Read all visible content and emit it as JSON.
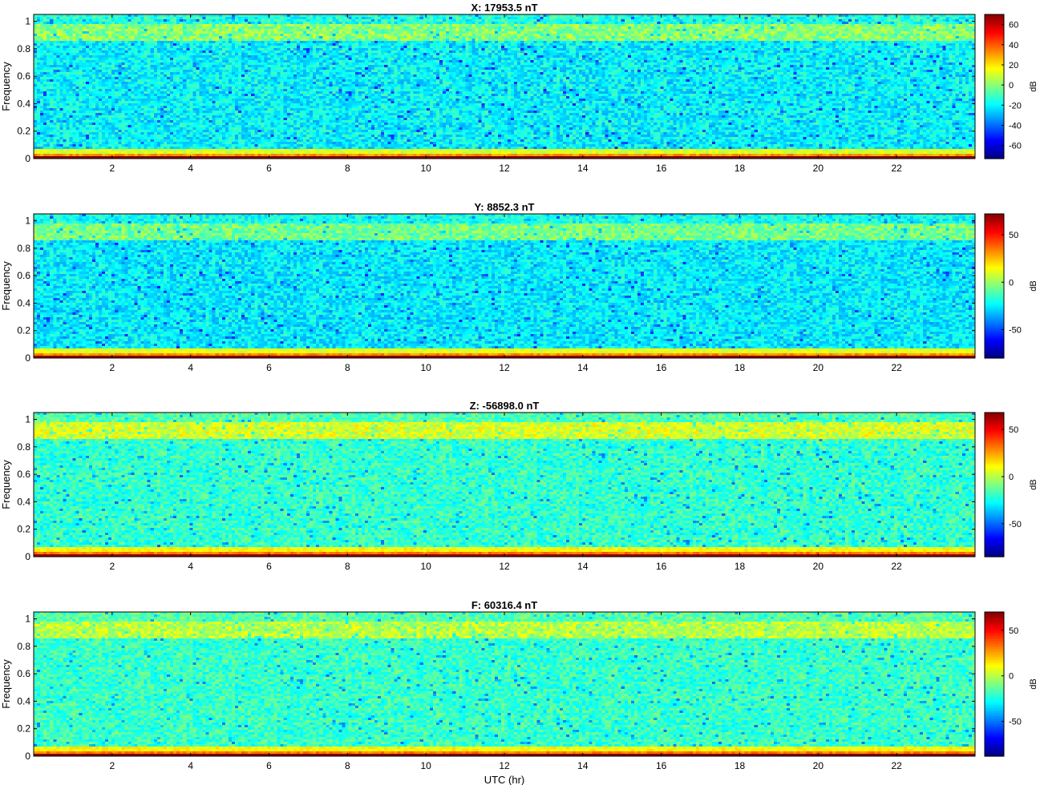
{
  "chart_data": [
    {
      "type": "heatmap",
      "title": "X: 17953.5 nT",
      "ylabel": "Frequency",
      "xlabel": "",
      "x_ticks": [
        2,
        4,
        6,
        8,
        10,
        12,
        14,
        16,
        18,
        20,
        22
      ],
      "y_ticks": [
        0,
        0.2,
        0.4,
        0.6,
        0.8,
        1
      ],
      "xlim": [
        0,
        24
      ],
      "ylim": [
        0,
        1.05
      ],
      "colorbar_label": "dB",
      "colorbar_ticks": [
        60,
        40,
        20,
        0,
        -20,
        -40,
        -60
      ],
      "colorbar_range": [
        -73,
        70
      ],
      "colormap": "jet",
      "features": {
        "background_db": -20,
        "band_0_9_db": 0,
        "dc_db": 70
      }
    },
    {
      "type": "heatmap",
      "title": "Y: 8852.3 nT",
      "ylabel": "Frequency",
      "xlabel": "",
      "x_ticks": [
        2,
        4,
        6,
        8,
        10,
        12,
        14,
        16,
        18,
        20,
        22
      ],
      "y_ticks": [
        0,
        0.2,
        0.4,
        0.6,
        0.8,
        1
      ],
      "xlim": [
        0,
        24
      ],
      "ylim": [
        0,
        1.05
      ],
      "colorbar_label": "dB",
      "colorbar_ticks": [
        50,
        0,
        -50
      ],
      "colorbar_range": [
        -80,
        72
      ],
      "colormap": "jet",
      "features": {
        "background_db": -25,
        "band_0_9_db": -5,
        "dc_db": 70
      }
    },
    {
      "type": "heatmap",
      "title": "Z: -56898.0 nT",
      "ylabel": "Frequency",
      "xlabel": "",
      "x_ticks": [
        2,
        4,
        6,
        8,
        10,
        12,
        14,
        16,
        18,
        20,
        22
      ],
      "y_ticks": [
        0,
        0.2,
        0.4,
        0.6,
        0.8,
        1
      ],
      "xlim": [
        0,
        24
      ],
      "ylim": [
        0,
        1.05
      ],
      "colorbar_label": "dB",
      "colorbar_ticks": [
        50,
        0,
        -50
      ],
      "colorbar_range": [
        -85,
        68
      ],
      "colormap": "jet",
      "features": {
        "background_db": -20,
        "band_0_9_db": 5,
        "dc_db": 65
      }
    },
    {
      "type": "heatmap",
      "title": "F: 60316.4 nT",
      "ylabel": "Frequency",
      "xlabel": "UTC (hr)",
      "x_ticks": [
        2,
        4,
        6,
        8,
        10,
        12,
        14,
        16,
        18,
        20,
        22
      ],
      "y_ticks": [
        0,
        0.2,
        0.4,
        0.6,
        0.8,
        1
      ],
      "xlim": [
        0,
        24
      ],
      "ylim": [
        0,
        1.05
      ],
      "colorbar_label": "dB",
      "colorbar_ticks": [
        50,
        0,
        -50
      ],
      "colorbar_range": [
        -88,
        70
      ],
      "colormap": "jet",
      "features": {
        "background_db": -20,
        "band_0_9_db": 0,
        "dc_db": 70
      }
    }
  ]
}
